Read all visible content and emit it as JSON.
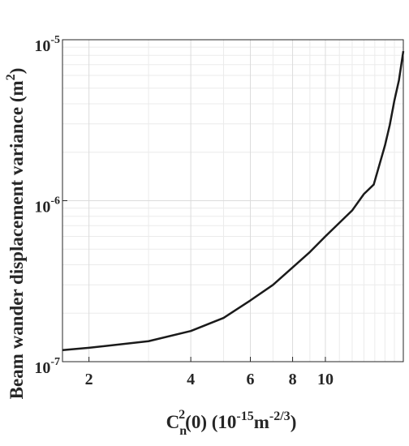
{
  "chart_data": {
    "type": "line",
    "x_label": [
      "C",
      "n",
      "2",
      "(0) (10",
      "-15",
      "m",
      "-2/3",
      ")"
    ],
    "y_label": [
      "Beam wander displacement variance (m",
      "2",
      ")"
    ],
    "x": [
      1.67,
      2,
      3,
      4,
      5,
      6,
      7,
      8,
      9,
      10,
      12,
      13,
      13.9,
      15,
      15.5,
      16,
      16.5,
      17
    ],
    "values": [
      1.18e-07,
      1.22e-07,
      1.34e-07,
      1.55e-07,
      1.87e-07,
      2.4e-07,
      3e-07,
      3.85e-07,
      4.8e-07,
      6e-07,
      8.7e-07,
      1.1e-06,
      1.26e-06,
      2.2e-06,
      2.95e-06,
      4.2e-06,
      5.6e-06,
      8.5e-06
    ],
    "color": "#1a1a1a",
    "xscale": "log",
    "yscale": "log",
    "xlim": [
      1.67,
      17
    ],
    "ylim": [
      1e-07,
      1e-05
    ],
    "xticks": [
      2,
      4,
      6,
      8,
      10
    ],
    "yticks": [
      {
        "value": 1e-07,
        "label": "10",
        "exponent": "-7"
      },
      {
        "value": 1e-06,
        "label": "10",
        "exponent": "-6"
      },
      {
        "value": 1e-05,
        "label": "10",
        "exponent": "-5"
      }
    ],
    "xminor": [
      3,
      5,
      7,
      9,
      11,
      12,
      13,
      14,
      15,
      16,
      17
    ],
    "yminor": [
      2e-07,
      3e-07,
      4e-07,
      5e-07,
      6e-07,
      7e-07,
      8e-07,
      9e-07,
      2e-06,
      3e-06,
      4e-06,
      5e-06,
      6e-06,
      7e-06,
      8e-06,
      9e-06
    ],
    "grid": true
  }
}
